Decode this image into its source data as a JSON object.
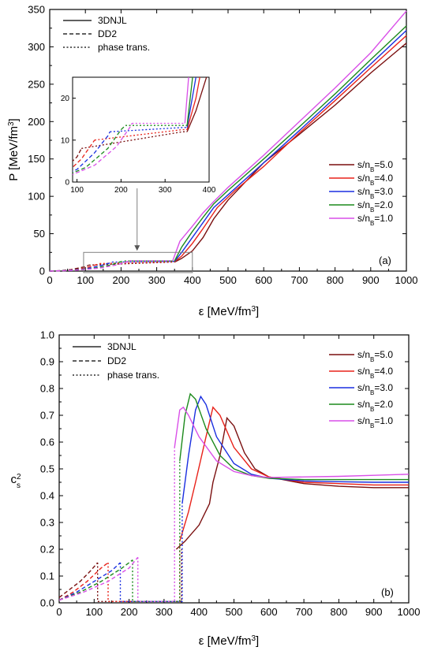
{
  "colors": {
    "s5.0": "#7a0f0f",
    "s4.0": "#e8221a",
    "s3.0": "#1a2fe0",
    "s2.0": "#1c8a1c",
    "s1.0": "#d94fe8",
    "frame": "#000000",
    "inset_box": "#808080"
  },
  "chart_data": [
    {
      "panel": "(a)",
      "type": "line",
      "xlabel": "ε [MeV/fm³]",
      "ylabel": "P [MeV/fm³]",
      "xlim": [
        0,
        1000
      ],
      "ylim": [
        0,
        350
      ],
      "xticks": [
        0,
        100,
        200,
        300,
        400,
        500,
        600,
        700,
        800,
        900,
        1000
      ],
      "yticks": [
        0,
        50,
        100,
        150,
        200,
        250,
        300,
        350
      ],
      "style_legend": [
        {
          "label": "3DNJL",
          "dash": "solid"
        },
        {
          "label": "DD2",
          "dash": "dashed"
        },
        {
          "label": "phase trans.",
          "dash": "dotted"
        }
      ],
      "series": [
        {
          "name": "s/nB=5.0",
          "ddLabel": "s/n",
          "sub": "B",
          "val": "=5.0",
          "color": "#7a0f0f",
          "dd2": [
            [
              0,
              0
            ],
            [
              30,
              0.5
            ],
            [
              60,
              2.0
            ],
            [
              80,
              4.0
            ],
            [
              100,
              6.0
            ],
            [
              110,
              8.0
            ]
          ],
          "pt": [
            [
              110,
              8.0
            ],
            [
              340,
              12.0
            ],
            [
              350,
              12.0
            ]
          ],
          "njl": [
            [
              350,
              12.0
            ],
            [
              370,
              17
            ],
            [
              400,
              27
            ],
            [
              430,
              45
            ],
            [
              460,
              70
            ],
            [
              500,
              95
            ],
            [
              550,
              120
            ],
            [
              600,
              145
            ],
            [
              700,
              183
            ],
            [
              800,
              222
            ],
            [
              900,
              265
            ],
            [
              1000,
              305
            ]
          ]
        },
        {
          "name": "s/nB=4.0",
          "ddLabel": "s/n",
          "sub": "B",
          "val": "=4.0",
          "color": "#e8221a",
          "dd2": [
            [
              0,
              0
            ],
            [
              40,
              0.6
            ],
            [
              80,
              2.5
            ],
            [
              110,
              5.5
            ],
            [
              130,
              8.5
            ],
            [
              140,
              10.0
            ]
          ],
          "pt": [
            [
              140,
              10.0
            ],
            [
              340,
              12.5
            ],
            [
              350,
              12.5
            ]
          ],
          "njl": [
            [
              350,
              12.5
            ],
            [
              370,
              20
            ],
            [
              400,
              37
            ],
            [
              430,
              57
            ],
            [
              470,
              85
            ],
            [
              520,
              108
            ],
            [
              600,
              140
            ],
            [
              700,
              185
            ],
            [
              800,
              228
            ],
            [
              900,
              272
            ],
            [
              1000,
              315
            ]
          ]
        },
        {
          "name": "s/nB=3.0",
          "ddLabel": "s/n",
          "sub": "B",
          "val": "=3.0",
          "color": "#1a2fe0",
          "dd2": [
            [
              0,
              0
            ],
            [
              50,
              0.8
            ],
            [
              100,
              3.0
            ],
            [
              140,
              7.0
            ],
            [
              170,
              11.0
            ],
            [
              175,
              12.0
            ]
          ],
          "pt": [
            [
              175,
              12.0
            ],
            [
              340,
              13.0
            ],
            [
              350,
              13.0
            ]
          ],
          "njl": [
            [
              350,
              13.0
            ],
            [
              370,
              25
            ],
            [
              400,
              45
            ],
            [
              430,
              65
            ],
            [
              460,
              85
            ],
            [
              500,
              102
            ],
            [
              600,
              145
            ],
            [
              700,
              188
            ],
            [
              800,
              232
            ],
            [
              900,
              277
            ],
            [
              1000,
              322
            ]
          ]
        },
        {
          "name": "s/nB=2.0",
          "ddLabel": "s/n",
          "sub": "B",
          "val": "=2.0",
          "color": "#1c8a1c",
          "dd2": [
            [
              0,
              0
            ],
            [
              60,
              0.8
            ],
            [
              120,
              3.5
            ],
            [
              170,
              8.0
            ],
            [
              200,
              12.5
            ],
            [
              210,
              13.5
            ]
          ],
          "pt": [
            [
              210,
              13.5
            ],
            [
              340,
              13.5
            ],
            [
              350,
              13.5
            ]
          ],
          "njl": [
            [
              350,
              13.5
            ],
            [
              370,
              32
            ],
            [
              400,
              53
            ],
            [
              430,
              72
            ],
            [
              460,
              90
            ],
            [
              500,
              108
            ],
            [
              600,
              150
            ],
            [
              700,
              193
            ],
            [
              800,
              237
            ],
            [
              900,
              283
            ],
            [
              1000,
              328
            ]
          ]
        },
        {
          "name": "s/nB=1.0",
          "ddLabel": "s/n",
          "sub": "B",
          "val": "=1.0",
          "color": "#d94fe8",
          "dd2": [
            [
              0,
              0
            ],
            [
              70,
              0.9
            ],
            [
              140,
              4.0
            ],
            [
              190,
              8.5
            ],
            [
              220,
              13.0
            ],
            [
              225,
              14.0
            ]
          ],
          "pt": [
            [
              225,
              14.0
            ],
            [
              335,
              14.0
            ],
            [
              345,
              14.0
            ]
          ],
          "njl": [
            [
              345,
              14.0
            ],
            [
              365,
              40
            ],
            [
              400,
              60
            ],
            [
              430,
              78
            ],
            [
              460,
              93
            ],
            [
              500,
              112
            ],
            [
              600,
              155
            ],
            [
              700,
              200
            ],
            [
              800,
              245
            ],
            [
              900,
              292
            ],
            [
              1000,
              348
            ]
          ]
        }
      ],
      "annotation": "(a)",
      "inset": {
        "xlim": [
          90,
          400
        ],
        "ylim": [
          0,
          25
        ],
        "xticks": [
          100,
          200,
          300,
          400
        ],
        "yticks": [
          0,
          10,
          20
        ],
        "zoom_box": {
          "x": [
            95,
            400
          ],
          "y": [
            -2,
            25
          ]
        },
        "arrow_x": 245
      }
    },
    {
      "panel": "(b)",
      "type": "line",
      "xlabel": "ε [MeV/fm³]",
      "ylabel": "c_s²",
      "xlim": [
        0,
        1000
      ],
      "ylim": [
        0,
        1.0
      ],
      "xticks": [
        0,
        100,
        200,
        300,
        400,
        500,
        600,
        700,
        800,
        900,
        1000
      ],
      "yticks": [
        0.0,
        0.1,
        0.2,
        0.3,
        0.4,
        0.5,
        0.6,
        0.7,
        0.8,
        0.9,
        1.0
      ],
      "style_legend": [
        {
          "label": "3DNJL",
          "dash": "solid"
        },
        {
          "label": "DD2",
          "dash": "dashed"
        },
        {
          "label": "phase trans.",
          "dash": "dotted"
        }
      ],
      "series": [
        {
          "name": "s/nB=5.0",
          "ddLabel": "s/n",
          "sub": "B",
          "val": "=5.0",
          "color": "#7a0f0f",
          "dd2": [
            [
              0,
              0.02
            ],
            [
              30,
              0.05
            ],
            [
              60,
              0.08
            ],
            [
              90,
              0.12
            ],
            [
              110,
              0.15
            ]
          ],
          "pt": [
            [
              110,
              0.15
            ],
            [
              110,
              0.005
            ],
            [
              340,
              0.005
            ],
            [
              350,
              0.005
            ],
            [
              350,
              0.2
            ]
          ],
          "njl": [
            [
              335,
              0.2
            ],
            [
              360,
              0.23
            ],
            [
              400,
              0.29
            ],
            [
              430,
              0.37
            ],
            [
              440,
              0.45
            ],
            [
              460,
              0.55
            ],
            [
              480,
              0.69
            ],
            [
              500,
              0.66
            ],
            [
              530,
              0.56
            ],
            [
              560,
              0.5
            ],
            [
              600,
              0.47
            ],
            [
              700,
              0.445
            ],
            [
              800,
              0.435
            ],
            [
              900,
              0.43
            ],
            [
              1000,
              0.43
            ]
          ]
        },
        {
          "name": "s/nB=4.0",
          "ddLabel": "s/n",
          "sub": "B",
          "val": "=4.0",
          "color": "#e8221a",
          "dd2": [
            [
              0,
              0.01
            ],
            [
              40,
              0.04
            ],
            [
              80,
              0.08
            ],
            [
              120,
              0.13
            ],
            [
              140,
              0.15
            ]
          ],
          "pt": [
            [
              140,
              0.15
            ],
            [
              140,
              0.005
            ],
            [
              340,
              0.005
            ],
            [
              345,
              0.005
            ],
            [
              345,
              0.23
            ]
          ],
          "njl": [
            [
              345,
              0.23
            ],
            [
              370,
              0.34
            ],
            [
              390,
              0.45
            ],
            [
              420,
              0.62
            ],
            [
              440,
              0.73
            ],
            [
              460,
              0.7
            ],
            [
              500,
              0.58
            ],
            [
              550,
              0.5
            ],
            [
              600,
              0.47
            ],
            [
              700,
              0.45
            ],
            [
              800,
              0.445
            ],
            [
              900,
              0.44
            ],
            [
              1000,
              0.44
            ]
          ]
        },
        {
          "name": "s/nB=3.0",
          "ddLabel": "s/n",
          "sub": "B",
          "val": "=3.0",
          "color": "#1a2fe0",
          "dd2": [
            [
              0,
              0.01
            ],
            [
              50,
              0.04
            ],
            [
              100,
              0.08
            ],
            [
              150,
              0.12
            ],
            [
              175,
              0.15
            ]
          ],
          "pt": [
            [
              175,
              0.15
            ],
            [
              175,
              0.005
            ],
            [
              340,
              0.005
            ],
            [
              352,
              0.005
            ],
            [
              352,
              0.37
            ]
          ],
          "njl": [
            [
              352,
              0.37
            ],
            [
              370,
              0.55
            ],
            [
              390,
              0.72
            ],
            [
              405,
              0.77
            ],
            [
              420,
              0.74
            ],
            [
              450,
              0.62
            ],
            [
              500,
              0.52
            ],
            [
              550,
              0.48
            ],
            [
              600,
              0.465
            ],
            [
              700,
              0.455
            ],
            [
              800,
              0.452
            ],
            [
              900,
              0.45
            ],
            [
              1000,
              0.45
            ]
          ]
        },
        {
          "name": "s/nB=2.0",
          "ddLabel": "s/n",
          "sub": "B",
          "val": "=2.0",
          "color": "#1c8a1c",
          "dd2": [
            [
              0,
              0.01
            ],
            [
              60,
              0.04
            ],
            [
              120,
              0.08
            ],
            [
              180,
              0.13
            ],
            [
              210,
              0.16
            ]
          ],
          "pt": [
            [
              210,
              0.16
            ],
            [
              210,
              0.005
            ],
            [
              340,
              0.005
            ],
            [
              345,
              0.005
            ],
            [
              345,
              0.53
            ]
          ],
          "njl": [
            [
              345,
              0.53
            ],
            [
              360,
              0.7
            ],
            [
              375,
              0.78
            ],
            [
              390,
              0.76
            ],
            [
              420,
              0.65
            ],
            [
              460,
              0.55
            ],
            [
              500,
              0.5
            ],
            [
              550,
              0.475
            ],
            [
              600,
              0.465
            ],
            [
              700,
              0.46
            ],
            [
              800,
              0.46
            ],
            [
              900,
              0.46
            ],
            [
              1000,
              0.46
            ]
          ]
        },
        {
          "name": "s/nB=1.0",
          "ddLabel": "s/n",
          "sub": "B",
          "val": "=1.0",
          "color": "#d94fe8",
          "dd2": [
            [
              0,
              0.01
            ],
            [
              70,
              0.04
            ],
            [
              140,
              0.08
            ],
            [
              200,
              0.13
            ],
            [
              225,
              0.17
            ]
          ],
          "pt": [
            [
              225,
              0.17
            ],
            [
              225,
              0.005
            ],
            [
              330,
              0.005
            ],
            [
              330,
              0.58
            ]
          ],
          "njl": [
            [
              330,
              0.58
            ],
            [
              345,
              0.72
            ],
            [
              355,
              0.73
            ],
            [
              370,
              0.7
            ],
            [
              400,
              0.62
            ],
            [
              450,
              0.53
            ],
            [
              500,
              0.49
            ],
            [
              550,
              0.475
            ],
            [
              600,
              0.468
            ],
            [
              700,
              0.47
            ],
            [
              800,
              0.472
            ],
            [
              900,
              0.476
            ],
            [
              1000,
              0.48
            ]
          ]
        }
      ],
      "annotation": "(b)"
    }
  ],
  "labels": {
    "a_ylabel_main": "P [MeV/fm",
    "a_ylabel_sup": "3",
    "a_ylabel_end": "]",
    "a_xlabel_eps": "ε",
    "a_xlabel_main": " [MeV/fm",
    "a_xlabel_sup": "3",
    "a_xlabel_end": "]",
    "b_ylabel_c": "c",
    "b_ylabel_sub": "s",
    "b_ylabel_sup": "2",
    "b_xlabel_eps": "ε",
    "b_xlabel_main": " [MeV/fm",
    "b_xlabel_sup": "3",
    "b_xlabel_end": "]"
  }
}
